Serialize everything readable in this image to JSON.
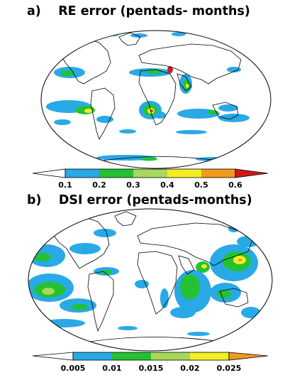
{
  "panels": [
    {
      "label": "a)",
      "title": "RE error (pentads- months)",
      "colorbar": {
        "ticks": [
          "0.1",
          "0.2",
          "0.3",
          "0.4",
          "0.5",
          "0.6"
        ],
        "colors": [
          "#ffffff",
          "#29a9e6",
          "#24c232",
          "#a7d85c",
          "#f2ee23",
          "#f19a1c",
          "#d21a1a"
        ]
      }
    },
    {
      "label": "b)",
      "title": "DSI error (pentads-months)",
      "colorbar": {
        "ticks": [
          "0.005",
          "0.01",
          "0.015",
          "0.02",
          "0.025"
        ],
        "colors": [
          "#ffffff",
          "#29a9e6",
          "#24c232",
          "#a7d85c",
          "#f2ee23",
          "#f19a1c"
        ]
      }
    }
  ]
}
